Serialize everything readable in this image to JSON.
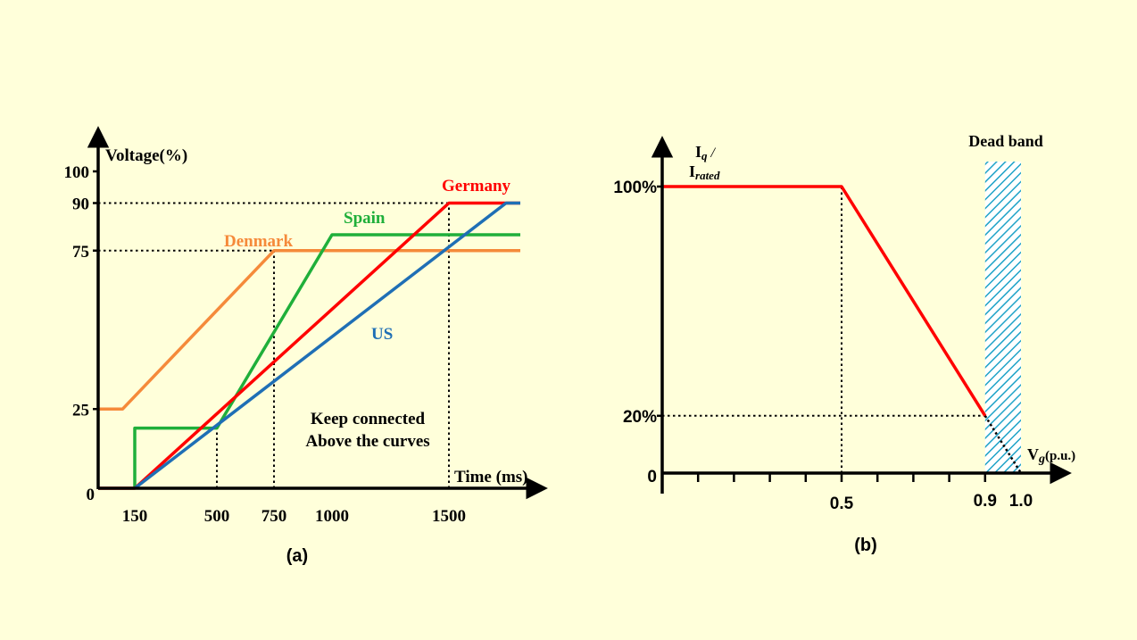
{
  "colors": {
    "background": "#FFFFDA",
    "axis": "#000000",
    "germany": "#FF0000",
    "spain": "#1FAF3A",
    "denmark": "#F58A3A",
    "us": "#1F6FB5",
    "current": "#FF0000",
    "dead_band": "#1FA3C8"
  },
  "chart_data": [
    {
      "type": "line",
      "panel_label": "(a)",
      "ylabel": "Voltage(%)",
      "xlabel": "Time (ms)",
      "x_ticks": [
        150,
        500,
        750,
        1000,
        1500
      ],
      "y_ticks": [
        0,
        25,
        75,
        90,
        100
      ],
      "x_tick_labels": [
        "150",
        "500",
        "750",
        "1000",
        "1500"
      ],
      "y_tick_labels": [
        "0",
        "25",
        "75",
        "90",
        "100"
      ],
      "annotation": [
        "Keep connected",
        "Above the curves"
      ],
      "series": [
        {
          "name": "Denmark",
          "color_key": "denmark",
          "x": [
            0,
            100,
            750,
            1750
          ],
          "y": [
            25,
            25,
            75,
            75
          ]
        },
        {
          "name": "Spain",
          "color_key": "spain",
          "x": [
            150,
            150,
            500,
            1000,
            1750
          ],
          "y": [
            0,
            19,
            19,
            80,
            80
          ]
        },
        {
          "name": "Germany",
          "color_key": "germany",
          "x": [
            0,
            150,
            1500,
            1750
          ],
          "y": [
            0,
            0,
            90,
            90
          ]
        },
        {
          "name": "US",
          "color_key": "us",
          "x": [
            150,
            1700,
            1750
          ],
          "y": [
            0,
            90,
            90
          ]
        }
      ],
      "reference_lines": [
        {
          "kind": "h",
          "y": 90,
          "x_to": 1500
        },
        {
          "kind": "h",
          "y": 75,
          "x_to": 750
        },
        {
          "kind": "v",
          "x": 500,
          "y_to": 19
        },
        {
          "kind": "v",
          "x": 750,
          "y_to": 75
        },
        {
          "kind": "v",
          "x": 1500,
          "y_to": 90
        }
      ]
    },
    {
      "type": "line",
      "panel_label": "(b)",
      "ylabel_main": "I",
      "ylabel_sub": "q",
      "ylabel_sep": " /",
      "ylabel2_main": "I",
      "ylabel2_sub": "rated",
      "xlabel_main": "V",
      "xlabel_sub": "g",
      "xlabel_rest": "(p.u.)",
      "x_tick_labels": [
        "0.5",
        "0.9",
        "1.0"
      ],
      "x_tick_values": [
        0.5,
        0.9,
        1.0
      ],
      "y_tick_labels": [
        "100%",
        "20%",
        "0"
      ],
      "y_tick_values": [
        100,
        20,
        0
      ],
      "dead_band": {
        "label": "Dead band",
        "x_from": 0.9,
        "x_to": 1.0
      },
      "series": [
        {
          "color_key": "current",
          "x": [
            0,
            0.5,
            0.9
          ],
          "y": [
            100,
            100,
            20
          ]
        }
      ],
      "dotted": [
        {
          "x": [
            0.9,
            1.0
          ],
          "y": [
            20,
            0
          ]
        }
      ],
      "reference_lines": [
        {
          "kind": "v",
          "x": 0.5,
          "y_to": 100
        },
        {
          "kind": "h",
          "y": 20,
          "x_to": 0.9
        }
      ]
    }
  ]
}
